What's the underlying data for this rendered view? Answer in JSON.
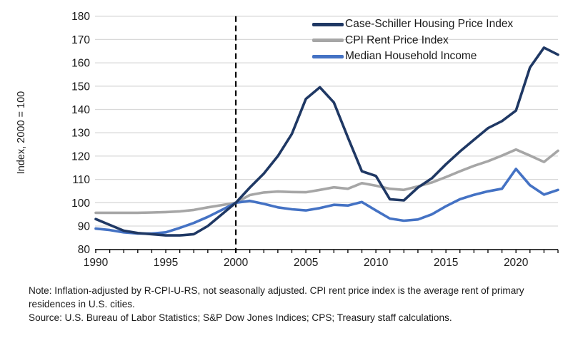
{
  "figure": {
    "y_axis_title": "Index, 2000 = 100",
    "note": "Note: Inflation-adjusted by R-CPI-U-RS, not seasonally adjusted. CPI rent price index is the average rent of primary residences in U.S. cities.",
    "source": "Source: U.S. Bureau of Labor Statistics; S&P Dow Jones Indices; CPS; Treasury staff calculations."
  },
  "colors": {
    "case_shiller": "#1F3864",
    "cpi_rent": "#A6A6A6",
    "median_income": "#4472C4",
    "gridline": "#D9D9D9",
    "axis": "#000000",
    "text": "#1a1a1a"
  },
  "chart_data": {
    "type": "line",
    "title": "",
    "ylabel": "Index, 2000 = 100",
    "xlabel": "",
    "ylim": [
      80,
      180
    ],
    "yticks": [
      80,
      90,
      100,
      110,
      120,
      130,
      140,
      150,
      160,
      170,
      180
    ],
    "xticks": [
      1990,
      1995,
      2000,
      2005,
      2010,
      2015,
      2020
    ],
    "grid": true,
    "legend_position": "top-right",
    "annotation": {
      "type": "vline-dashed",
      "x": 2000
    },
    "x": [
      1990,
      1991,
      1992,
      1993,
      1994,
      1995,
      1996,
      1997,
      1998,
      1999,
      2000,
      2001,
      2002,
      2003,
      2004,
      2005,
      2006,
      2007,
      2008,
      2009,
      2010,
      2011,
      2012,
      2013,
      2014,
      2015,
      2016,
      2017,
      2018,
      2019,
      2020,
      2021,
      2022,
      2023
    ],
    "series": [
      {
        "name": "Case-Schiller Housing Price Index",
        "color": "#1F3864",
        "values": [
          93,
          90.5,
          88,
          87,
          86.5,
          86,
          86,
          86.5,
          90,
          95,
          100,
          106.5,
          112.5,
          120,
          129.5,
          144.5,
          149.5,
          143,
          128,
          113.5,
          111.5,
          101.5,
          101,
          106.5,
          110.5,
          116.5,
          122,
          127,
          132,
          135,
          139.5,
          158,
          166.5,
          163.5
        ]
      },
      {
        "name": "CPI Rent Price Index",
        "color": "#A6A6A6",
        "values": [
          95.7,
          95.7,
          95.7,
          95.7,
          95.8,
          96,
          96.3,
          96.9,
          98,
          99,
          100,
          103.3,
          104.4,
          104.8,
          104.6,
          104.5,
          105.5,
          106.6,
          106,
          108.4,
          107.3,
          106,
          105.5,
          107,
          108.7,
          111,
          113.5,
          115.8,
          117.8,
          120.2,
          122.8,
          120.2,
          117.5,
          122.3
        ]
      },
      {
        "name": "Median Household Income",
        "color": "#4472C4",
        "values": [
          88.9,
          88.3,
          87.3,
          86.8,
          86.8,
          87.3,
          89.2,
          91.3,
          93.9,
          96.9,
          100,
          100.8,
          99.5,
          98,
          97.2,
          96.7,
          97.7,
          99.1,
          98.8,
          100.3,
          96.7,
          93.2,
          92.3,
          92.8,
          95,
          98.5,
          101.5,
          103.4,
          104.9,
          106,
          114.5,
          107.5,
          103.5,
          105.5
        ]
      }
    ]
  }
}
